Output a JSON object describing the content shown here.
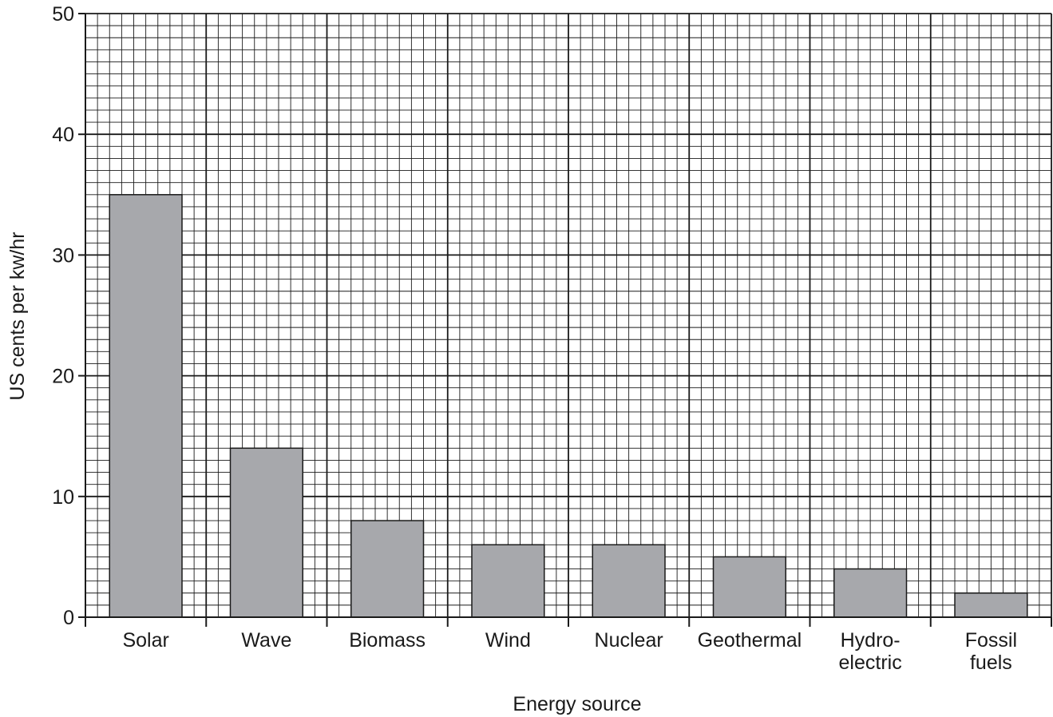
{
  "chart_data": {
    "type": "bar",
    "categories": [
      [
        "Solar"
      ],
      [
        "Wave"
      ],
      [
        "Biomass"
      ],
      [
        "Wind"
      ],
      [
        "Nuclear"
      ],
      [
        "Geothermal"
      ],
      [
        "Hydro-",
        "electric"
      ],
      [
        "Fossil",
        "fuels"
      ]
    ],
    "values": [
      35,
      14,
      8,
      6,
      6,
      5,
      4,
      2
    ],
    "title": "",
    "xlabel": "Energy source",
    "ylabel": "US cents per kw/hr",
    "ylim": [
      0,
      50
    ],
    "yticks": [
      0,
      10,
      20,
      30,
      40,
      50
    ],
    "ytick_labels": [
      "0",
      "10",
      "20",
      "30",
      "40",
      "50"
    ],
    "grid": true,
    "bar_color": "#a7a8ac",
    "grid_color": "#1a1a1a"
  }
}
